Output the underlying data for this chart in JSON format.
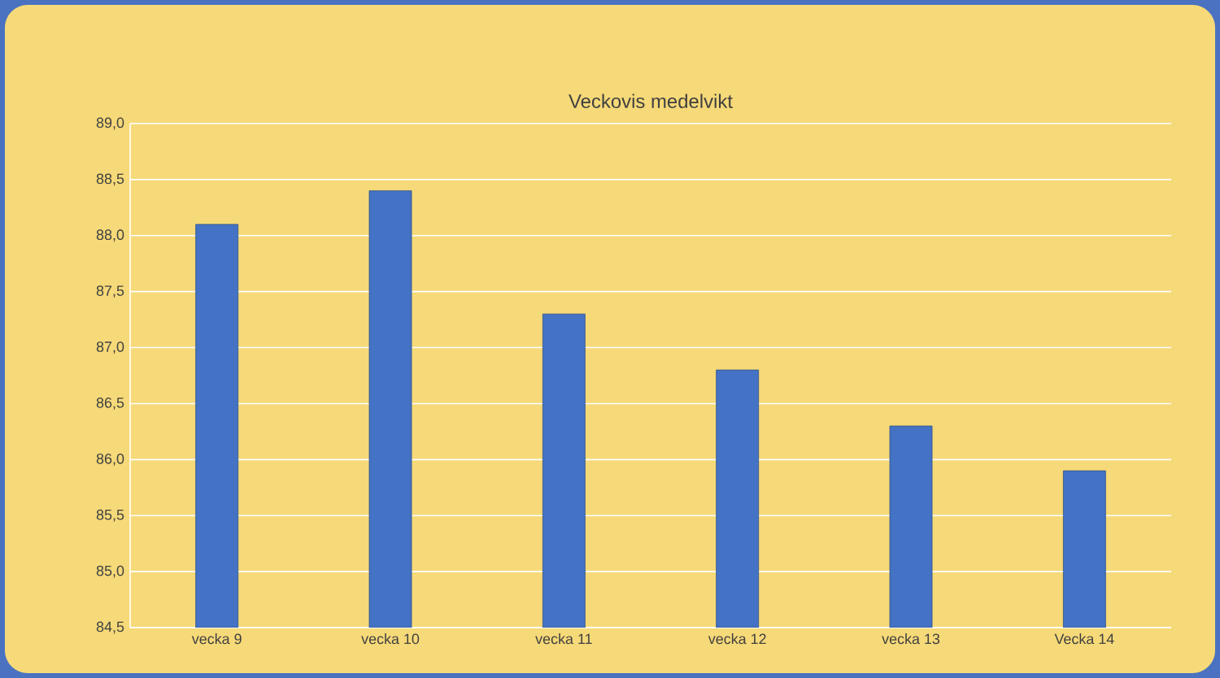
{
  "chart_data": {
    "type": "bar",
    "title": "Veckovis medelvikt",
    "categories": [
      "vecka 9",
      "vecka 10",
      "vecka 11",
      "vecka 12",
      "vecka 13",
      "Vecka 14"
    ],
    "values": [
      88.1,
      88.4,
      87.3,
      86.8,
      86.3,
      85.9
    ],
    "color": "#4472c4",
    "ylim": [
      84.5,
      89.0
    ],
    "yticks": [
      {
        "value": 84.5,
        "label": "84,5"
      },
      {
        "value": 85.0,
        "label": "85,0"
      },
      {
        "value": 85.5,
        "label": "85,5"
      },
      {
        "value": 86.0,
        "label": "86,0"
      },
      {
        "value": 86.5,
        "label": "86,5"
      },
      {
        "value": 87.0,
        "label": "87,0"
      },
      {
        "value": 87.5,
        "label": "87,5"
      },
      {
        "value": 88.0,
        "label": "88,0"
      },
      {
        "value": 88.5,
        "label": "88,5"
      },
      {
        "value": 89.0,
        "label": "89,0"
      }
    ],
    "grid": "y"
  }
}
